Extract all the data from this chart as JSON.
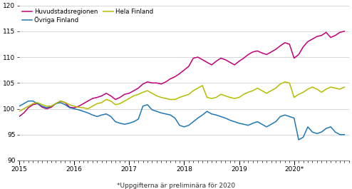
{
  "footnote": "*Uppgifterna är preliminära för 2020",
  "legend_entries": [
    "Huvudstadsregionen",
    "Övriga Finland",
    "Hela Finland"
  ],
  "colors": {
    "huvudstadsregionen": "#c0007a",
    "ovriga_finland": "#1f78b4",
    "hela_finland": "#b5bd00"
  },
  "ylim": [
    90,
    120
  ],
  "yticks": [
    90,
    95,
    100,
    105,
    110,
    115,
    120
  ],
  "xtick_labels": [
    "2015",
    "2016",
    "2017",
    "2018",
    "2019",
    "2020*"
  ],
  "xtick_positions": [
    2015,
    2016,
    2017,
    2018,
    2019,
    2020
  ],
  "start_year": 2015,
  "n_months": 72,
  "xlim_end": 2021.0,
  "huvudstadsregionen": [
    98.5,
    99.2,
    100.2,
    100.8,
    101.0,
    100.3,
    100.0,
    100.3,
    101.0,
    101.5,
    101.2,
    100.3,
    100.2,
    100.5,
    101.0,
    101.5,
    102.0,
    102.2,
    102.5,
    103.0,
    102.5,
    101.8,
    102.2,
    102.8,
    103.0,
    103.5,
    104.0,
    104.8,
    105.2,
    105.0,
    105.0,
    104.8,
    105.2,
    105.8,
    106.2,
    106.8,
    107.5,
    108.2,
    109.8,
    110.0,
    109.5,
    109.0,
    108.5,
    109.2,
    109.8,
    109.5,
    109.0,
    108.5,
    109.2,
    109.8,
    110.5,
    111.0,
    111.2,
    110.8,
    110.5,
    111.0,
    111.5,
    112.2,
    112.8,
    112.5,
    109.8,
    110.5,
    112.0,
    113.0,
    113.5,
    114.0,
    114.2,
    114.8,
    113.8,
    114.2,
    114.8,
    115.0
  ],
  "ovriga_finland": [
    100.5,
    101.0,
    101.5,
    101.5,
    101.0,
    100.5,
    100.2,
    100.5,
    101.0,
    101.2,
    100.8,
    100.2,
    100.0,
    99.8,
    99.5,
    99.2,
    98.8,
    98.5,
    98.8,
    99.0,
    98.5,
    97.5,
    97.2,
    97.0,
    97.2,
    97.5,
    98.0,
    100.5,
    100.8,
    99.8,
    99.5,
    99.2,
    99.0,
    98.8,
    98.2,
    96.8,
    96.5,
    96.8,
    97.5,
    98.2,
    98.8,
    99.5,
    99.0,
    98.8,
    98.5,
    98.2,
    97.8,
    97.5,
    97.2,
    97.0,
    96.8,
    97.2,
    97.5,
    97.0,
    96.5,
    97.0,
    97.5,
    98.5,
    98.8,
    98.5,
    98.2,
    94.0,
    94.5,
    96.5,
    95.5,
    95.2,
    95.5,
    96.2,
    96.5,
    95.5,
    95.0,
    95.0
  ],
  "hela_finland": [
    99.5,
    100.0,
    100.5,
    101.0,
    101.2,
    100.8,
    100.5,
    100.5,
    101.0,
    101.5,
    101.2,
    100.8,
    100.5,
    100.3,
    100.2,
    100.0,
    100.5,
    101.0,
    101.2,
    101.8,
    101.5,
    100.8,
    101.0,
    101.5,
    102.0,
    102.5,
    102.8,
    103.2,
    103.5,
    103.0,
    102.5,
    102.2,
    102.0,
    101.8,
    101.8,
    102.2,
    102.5,
    102.8,
    103.5,
    104.0,
    104.5,
    102.2,
    102.0,
    102.2,
    102.8,
    102.5,
    102.2,
    102.0,
    102.2,
    102.8,
    103.2,
    103.5,
    104.0,
    103.5,
    103.0,
    103.5,
    104.0,
    104.8,
    105.2,
    105.0,
    102.2,
    102.8,
    103.2,
    103.8,
    104.2,
    103.8,
    103.2,
    103.8,
    104.2,
    104.0,
    103.8,
    104.2
  ]
}
